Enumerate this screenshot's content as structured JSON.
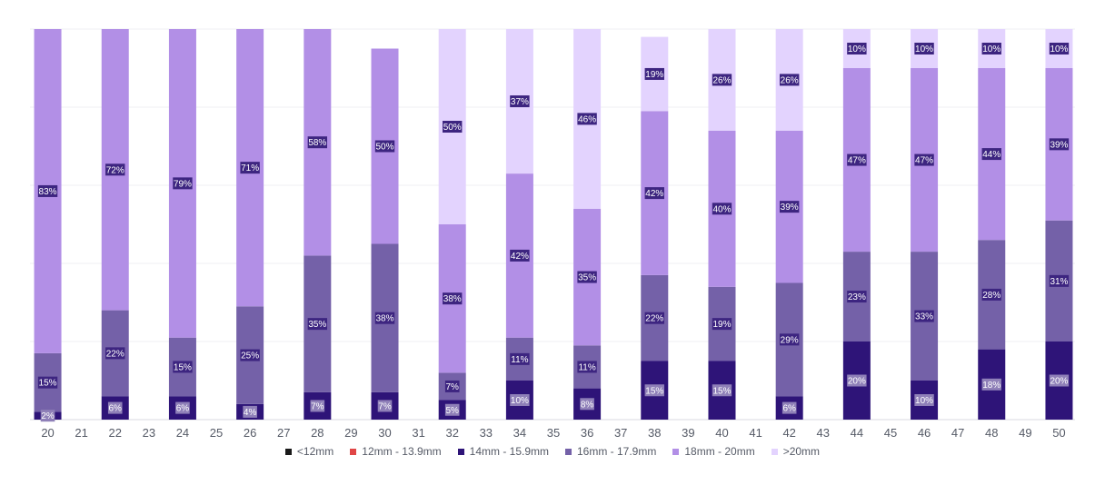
{
  "chart_data": {
    "type": "bar",
    "stacked": true,
    "normalized": true,
    "categories": [
      "20",
      "21",
      "22",
      "23",
      "24",
      "25",
      "26",
      "27",
      "28",
      "29",
      "30",
      "31",
      "32",
      "33",
      "34",
      "35",
      "36",
      "37",
      "38",
      "39",
      "40",
      "41",
      "42",
      "43",
      "44",
      "45",
      "46",
      "47",
      "48",
      "49",
      "50"
    ],
    "ylim": [
      0,
      100
    ],
    "title": "",
    "xlabel": "",
    "ylabel": "",
    "legend_position": "bottom",
    "grid": true,
    "series": [
      {
        "name": "<12mm",
        "color": "#1a1a1a",
        "label_color": "#ffffff",
        "label_bg": "#1a1a1a",
        "values": [
          0,
          null,
          0,
          null,
          0,
          null,
          0,
          null,
          0,
          null,
          0,
          null,
          0,
          null,
          0,
          null,
          0,
          null,
          0,
          null,
          0,
          null,
          0,
          null,
          0,
          null,
          0,
          null,
          0,
          null,
          0
        ]
      },
      {
        "name": "12mm - 13.9mm",
        "color": "#e04646",
        "label_color": "#ffffff",
        "label_bg": "#e04646",
        "values": [
          0,
          null,
          0,
          null,
          0,
          null,
          0,
          null,
          0,
          null,
          0,
          null,
          0,
          null,
          0,
          null,
          0,
          null,
          0,
          null,
          0,
          null,
          0,
          null,
          0,
          null,
          0,
          null,
          0,
          null,
          0
        ]
      },
      {
        "name": "14mm - 15.9mm",
        "color": "#2e1478",
        "label_color": "#ffffff",
        "label_bg": "#8f80b8",
        "values": [
          2,
          null,
          6,
          null,
          6,
          null,
          4,
          null,
          7,
          null,
          7,
          null,
          5,
          null,
          10,
          null,
          8,
          null,
          15,
          null,
          15,
          null,
          6,
          null,
          20,
          null,
          10,
          null,
          18,
          null,
          20
        ]
      },
      {
        "name": "16mm - 17.9mm",
        "color": "#7461a8",
        "label_color": "#ffffff",
        "label_bg": "#3d2580",
        "values": [
          15,
          null,
          22,
          null,
          15,
          null,
          25,
          null,
          35,
          null,
          38,
          null,
          7,
          null,
          11,
          null,
          11,
          null,
          22,
          null,
          19,
          null,
          29,
          null,
          23,
          null,
          33,
          null,
          28,
          null,
          31
        ]
      },
      {
        "name": "18mm - 20mm",
        "color": "#b28fe6",
        "label_color": "#ffffff",
        "label_bg": "#3d2580",
        "values": [
          83,
          null,
          72,
          null,
          79,
          null,
          71,
          null,
          58,
          null,
          50,
          null,
          38,
          null,
          42,
          null,
          35,
          null,
          42,
          null,
          40,
          null,
          39,
          null,
          47,
          null,
          47,
          null,
          44,
          null,
          39
        ]
      },
      {
        "name": ">20mm",
        "color": "#e3d3fe",
        "label_color": "#ffffff",
        "label_bg": "#3d2580",
        "values": [
          0,
          null,
          0,
          null,
          0,
          null,
          0,
          null,
          0,
          null,
          0,
          null,
          50,
          null,
          37,
          null,
          46,
          null,
          19,
          null,
          26,
          null,
          26,
          null,
          10,
          null,
          10,
          null,
          10,
          null,
          10
        ]
      }
    ]
  }
}
